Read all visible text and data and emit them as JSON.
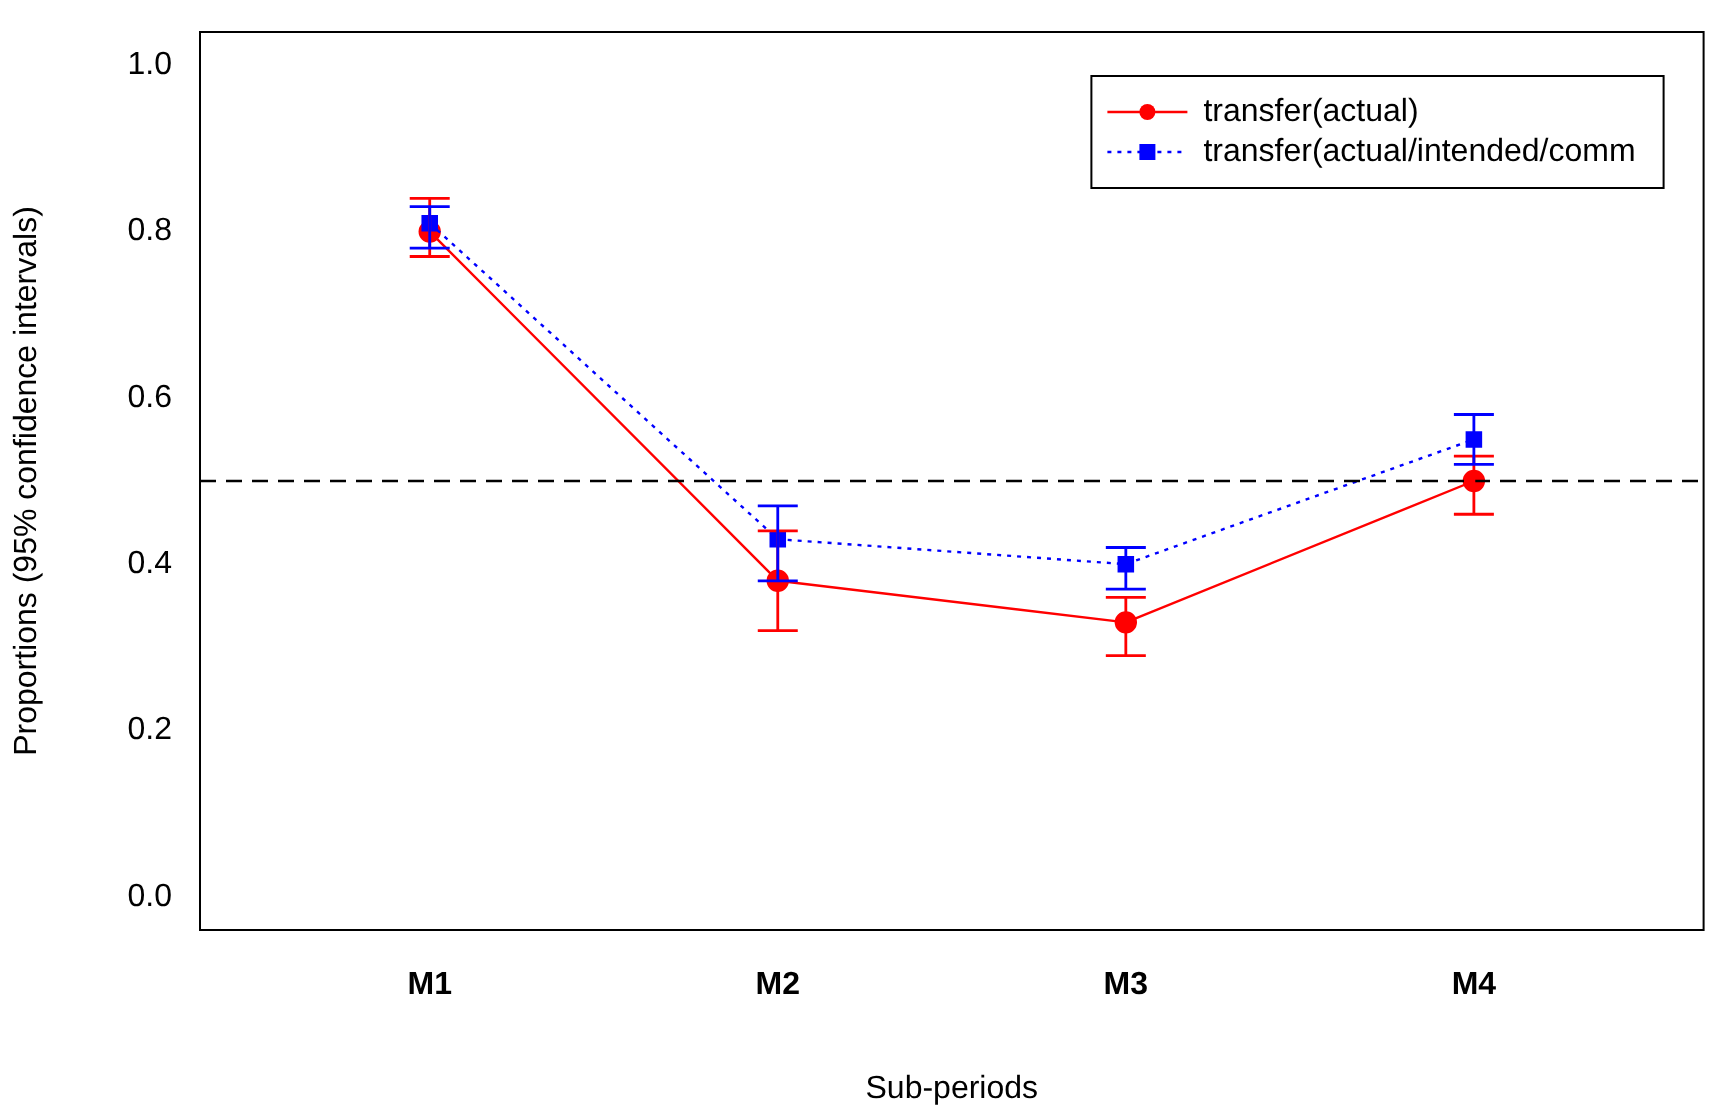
{
  "chart_data": {
    "type": "line",
    "xlabel": "Sub-periods",
    "ylabel": "Proportions (95% confidence intervals)",
    "categories": [
      "M1",
      "M2",
      "M3",
      "M4"
    ],
    "ylim": [
      -0.04,
      1.04
    ],
    "yticks": [
      {
        "value": 0,
        "label": "0.0"
      },
      {
        "value": 0.2,
        "label": "0.2"
      },
      {
        "value": 0.4,
        "label": "0.4"
      },
      {
        "value": 0.6,
        "label": "0.6"
      },
      {
        "value": 0.8,
        "label": "0.8"
      },
      {
        "value": 1,
        "label": "1.0"
      }
    ],
    "series": [
      {
        "name": "transfer(actual)",
        "color": "#ff0000",
        "marker": "circle",
        "line_style": "solid",
        "values": [
          0.8,
          0.38,
          0.33,
          0.5
        ],
        "errors": [
          [
            0.77,
            0.84
          ],
          [
            0.32,
            0.44
          ],
          [
            0.29,
            0.36
          ],
          [
            0.46,
            0.53
          ]
        ]
      },
      {
        "name": "transfer(actual/intended/comm",
        "color": "#0000ff",
        "marker": "square",
        "line_style": "dotted",
        "values": [
          0.81,
          0.43,
          0.4,
          0.55
        ],
        "errors": [
          [
            0.78,
            0.83
          ],
          [
            0.38,
            0.47
          ],
          [
            0.37,
            0.42
          ],
          [
            0.52,
            0.58
          ]
        ]
      }
    ],
    "ref_lines": [
      {
        "axis": "y",
        "value": 0.5,
        "color": "#000000",
        "line_style": "dashed"
      }
    ],
    "legend": "top right",
    "grid": false
  }
}
